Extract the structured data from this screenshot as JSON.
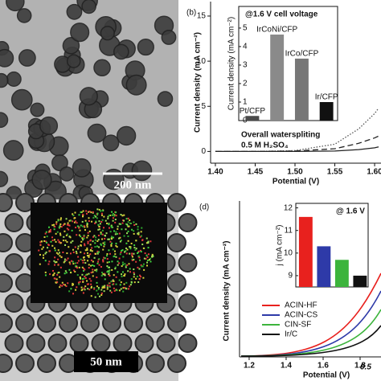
{
  "figure": {
    "panel_a_scale": "200 nm",
    "panel_c_scale": "50 nm"
  },
  "chart_data": [
    {
      "type": "line",
      "label": "(b)",
      "xlabel": "Potential (V)",
      "ylabel": "Current density (mA cm⁻²)",
      "x": [
        1.4,
        1.45,
        1.5,
        1.55,
        1.58,
        1.6,
        1.605
      ],
      "series": [
        {
          "color": "#222222",
          "style": "dashed",
          "values": [
            0,
            0,
            0.05,
            0.3,
            0.9,
            1.5,
            1.7
          ]
        },
        {
          "color": "#555555",
          "style": "dotted",
          "values": [
            0,
            0,
            0.1,
            0.8,
            2.5,
            4.2,
            4.8
          ]
        },
        {
          "color": "#222222",
          "style": "solid",
          "values": [
            0,
            0,
            0,
            0.05,
            0.2,
            0.4,
            0.5
          ]
        }
      ],
      "xlim": [
        1.394,
        1.608
      ],
      "xticks": [
        {
          "value": 1.4,
          "label": "1.40"
        },
        {
          "value": 1.45,
          "label": "1.45"
        },
        {
          "value": 1.5,
          "label": "1.50"
        },
        {
          "value": 1.55,
          "label": "1.55"
        },
        {
          "value": 1.6,
          "label": "1.60"
        }
      ],
      "ylim": [
        -1.3,
        16.6
      ],
      "yticks": [
        0,
        5,
        10,
        15
      ],
      "annotations": [
        "Overall waterspliting",
        "0.5 M H₂SO₄"
      ]
    },
    {
      "type": "bar",
      "title": "@1.6 V cell voltage",
      "ylabel": "Current density (mA cm⁻²)",
      "categories": [
        "Pt/CFP",
        "IrCoNi/CFP",
        "IrCo/CFP",
        "Ir/CFP"
      ],
      "values": [
        0.25,
        4.65,
        3.35,
        1.0
      ],
      "colors": [
        "#4a4a4a",
        "#8a8a8a",
        "#777777",
        "#111111"
      ],
      "ylim": [
        0,
        6.17
      ],
      "yticks": [
        0,
        1,
        2,
        3,
        4,
        5
      ]
    },
    {
      "type": "line",
      "label": "(d)",
      "xlabel": "Potential (V)",
      "ylabel": "Current density (mA cm⁻²)",
      "xlim": [
        1.148,
        1.913
      ],
      "xticks": [
        1.2,
        1.4,
        1.6,
        1.8
      ],
      "annotations": [
        "0.5"
      ]
    },
    {
      "type": "bar",
      "title": "@ 1.6 V",
      "ylabel": "j (mA cm⁻²)",
      "categories": [
        "ACIN-HF",
        "ACIN-CS",
        "CIN-SF",
        "Ir/C"
      ],
      "values": [
        11.6,
        10.3,
        9.7,
        9.0
      ],
      "colors": [
        "#e8211e",
        "#2e3aa8",
        "#3cb43c",
        "#111111"
      ],
      "ylim": [
        8.5,
        12.2
      ],
      "yticks": [
        9,
        10,
        11,
        12
      ],
      "legend": "lower-left"
    }
  ]
}
